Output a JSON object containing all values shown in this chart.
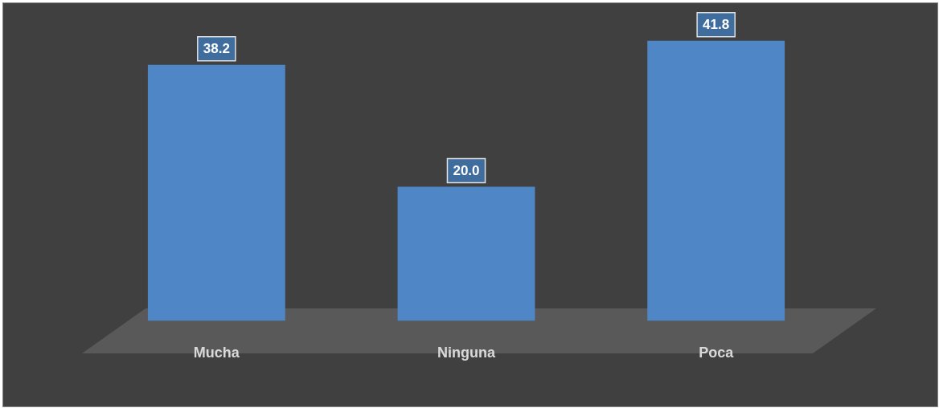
{
  "chart_data": {
    "type": "bar",
    "categories": [
      "Mucha",
      "Ninguna",
      "Poca"
    ],
    "values": [
      38.2,
      20.0,
      41.8
    ],
    "value_labels": [
      "38.2",
      "20.0",
      "41.8"
    ],
    "color": "#4f86c6",
    "grid": false,
    "legend": false
  }
}
